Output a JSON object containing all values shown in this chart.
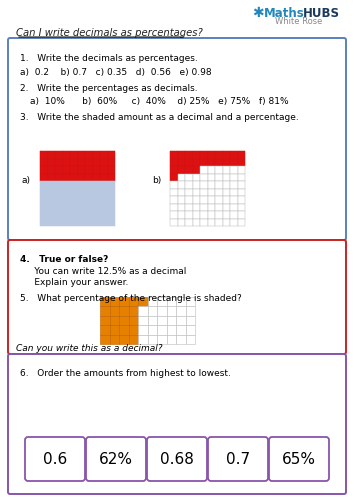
{
  "title": "Can I write decimals as percentages?",
  "box1_border": "#5b7fbf",
  "box2_border": "#cc2222",
  "box3_border": "#8855aa",
  "q1_header": "1.   Write the decimals as percentages.",
  "q1_items": "a)  0.2    b) 0.7   c) 0.35   d)  0.56   e) 0.98",
  "q2_header": "2.   Write the percentages as decimals.",
  "q2_items": "a)  10%      b)  60%     c)  40%    d) 25%   e) 75%   f) 81%",
  "q3_header": "3.   Write the shaded amount as a decimal and a percentage.",
  "q4_bold": "4.   True or false?",
  "q4_line1": "     You can write 12.5% as a decimal",
  "q4_line2": "     Explain your answer.",
  "q5_header": "5.   What percentage of the rectangle is shaded?",
  "q5_footer": "Can you write this as a decimal?",
  "q6_header": "6.   Order the amounts from highest to lowest.",
  "q6_items": [
    "0.6",
    "62%",
    "0.68",
    "0.7",
    "65%"
  ],
  "red_color": "#dd1111",
  "red_light": "#ee3333",
  "orange_color": "#e68000",
  "grid_blue": "#b8c8e0",
  "grid_gray": "#bbbbbb",
  "background": "#ffffff",
  "text_color": "#222222",
  "logo_maths": "#2288bb",
  "logo_hubs": "#1a3a5a",
  "logo_sub": "#888888"
}
